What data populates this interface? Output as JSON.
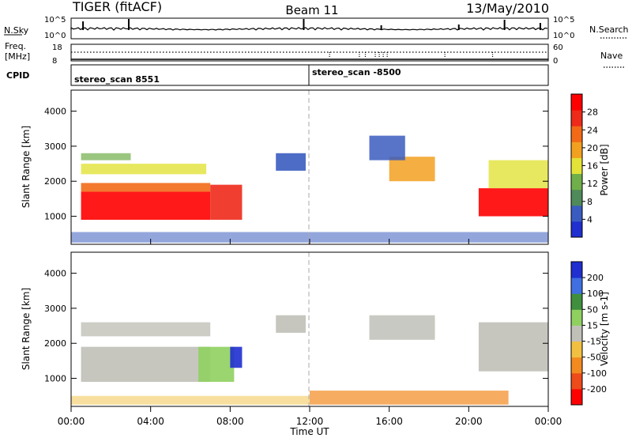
{
  "header": {
    "title_left": "TIGER (fitACF)",
    "title_center": "Beam 11",
    "title_right": "13/May/2010"
  },
  "colors": {
    "power_scale": [
      "#1f2fd0",
      "#3a5cc0",
      "#4f8a5a",
      "#6fae4a",
      "#e2e238",
      "#f2a020",
      "#f26a18",
      "#ee2a1a",
      "#ff0000"
    ],
    "velocity_scale": [
      "#1f2fd0",
      "#3f6fe0",
      "#3f8f3f",
      "#8fd060",
      "#c0c0b8",
      "#f2c040",
      "#f28a20",
      "#ee4a1a",
      "#ff0000"
    ],
    "ground_scatter": "#c0c0b8"
  },
  "chart_data": [
    {
      "type": "line",
      "panel": "noise",
      "left_label": "N.Sky",
      "right_label": "N.Search",
      "left_ticks": [
        "10^5",
        "10^0"
      ],
      "right_ticks": [
        "10^5",
        "10^0"
      ]
    },
    {
      "type": "scatter",
      "panel": "frequency",
      "left_label": "Freq.",
      "left_unit": "[MHz]",
      "right_label": "Nave",
      "left_ticks": [
        18,
        8
      ],
      "right_ticks": [
        60,
        0
      ],
      "cpid_label": "CPID",
      "cpid_segments": [
        {
          "label": "stereo_scan  8551",
          "start_hour": 0
        },
        {
          "label": "stereo_scan  -8500",
          "start_hour": 12
        }
      ]
    },
    {
      "type": "heatmap",
      "panel": "power",
      "ylabel": "Slant Range [km]",
      "yticks": [
        1000,
        2000,
        3000,
        4000
      ],
      "ylim": [
        200,
        4600
      ],
      "colorbar_label": "Power [dB]",
      "colorbar_ticks": [
        4,
        8,
        12,
        16,
        20,
        24,
        28
      ],
      "colorbar_range": [
        0,
        32
      ]
    },
    {
      "type": "heatmap",
      "panel": "velocity",
      "ylabel": "Slant Range [km]",
      "yticks": [
        1000,
        2000,
        3000,
        4000
      ],
      "ylim": [
        200,
        4600
      ],
      "colorbar_label": "Velocity [m s-1]",
      "colorbar_ticks": [
        200,
        100,
        50,
        15,
        -15,
        -50,
        -100,
        -200
      ]
    }
  ],
  "xaxis": {
    "label": "Time UT",
    "tick_labels": [
      "00:00",
      "04:00",
      "08:00",
      "12:00",
      "16:00",
      "20:00",
      "00:00"
    ],
    "range_hours": [
      0,
      24
    ]
  }
}
